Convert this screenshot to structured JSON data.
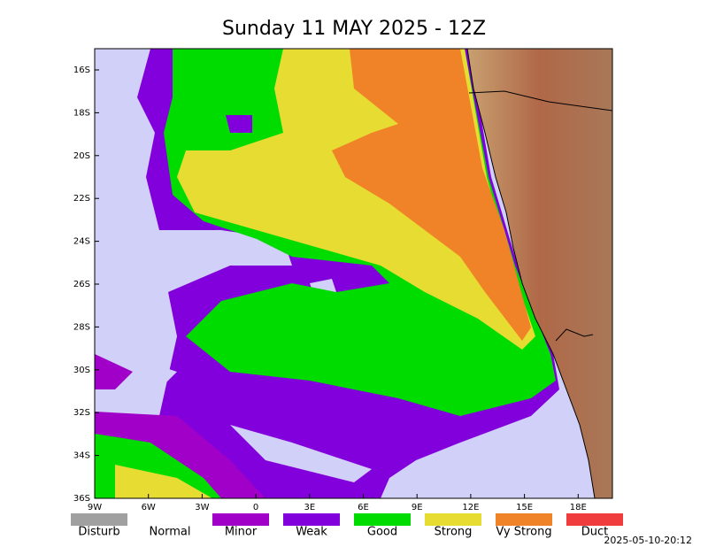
{
  "header": {
    "title": "Sunday 11 MAY 2025 - 12Z"
  },
  "map": {
    "lat_labels": [
      "16S",
      "18S",
      "20S",
      "22S",
      "24S",
      "26S",
      "28S",
      "30S",
      "32S",
      "34S",
      "36S"
    ],
    "lon_labels": [
      "9W",
      "6W",
      "3W",
      "0",
      "3E",
      "6E",
      "9E",
      "12E",
      "15E",
      "18E"
    ]
  },
  "legend": [
    {
      "label": "Disturb",
      "color": "#a0a0a0"
    },
    {
      "label": "Normal",
      "color": "#ffffff"
    },
    {
      "label": "Minor",
      "color": "#a000c8"
    },
    {
      "label": "Weak",
      "color": "#8200dc"
    },
    {
      "label": "Good",
      "color": "#00dc00"
    },
    {
      "label": "Strong",
      "color": "#e6dc32"
    },
    {
      "label": "Vy Strong",
      "color": "#f08228"
    },
    {
      "label": "Duct",
      "color": "#f03c3c"
    }
  ],
  "timestamp": "2025-05-10-20:12"
}
